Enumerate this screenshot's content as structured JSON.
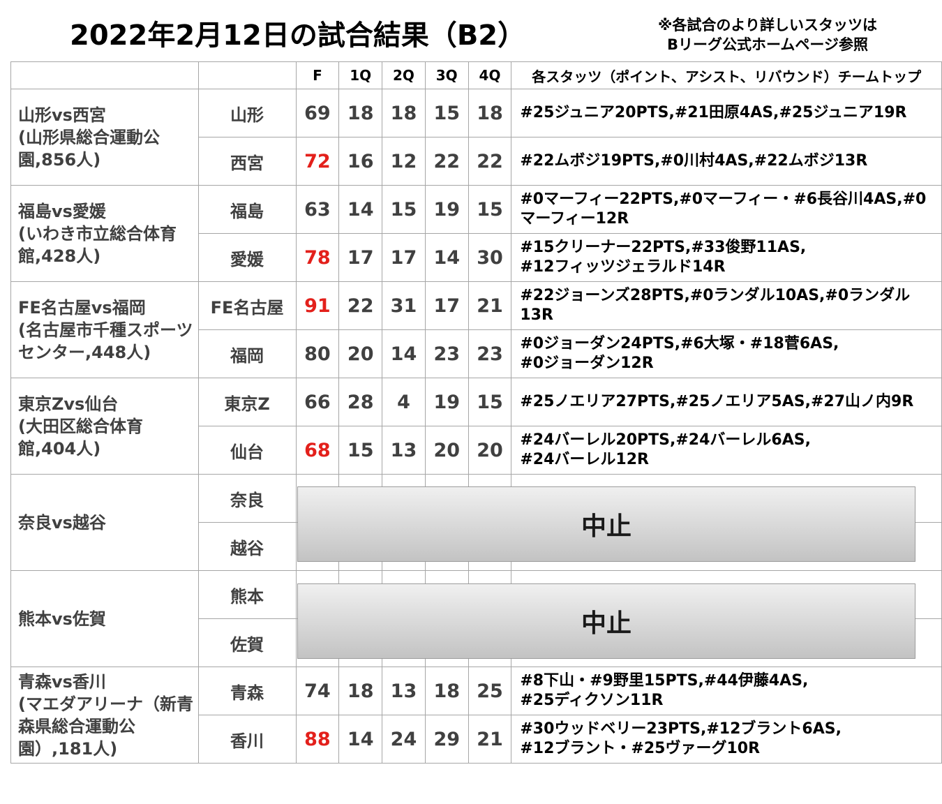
{
  "title": "2022年2月12日の試合結果（B2）",
  "note": [
    "※各試合のより詳しいスタッツは",
    "Bリーグ公式ホームページ参照"
  ],
  "headers": [
    "",
    "",
    "F",
    "1Q",
    "2Q",
    "3Q",
    "4Q",
    "各スタッツ（ポイント、アシスト、リバウンド）チームトップ"
  ],
  "colors": {
    "win": "#e3201b",
    "text": "#404040",
    "border": "#a6a6a6"
  },
  "games": [
    {
      "label": "山形vs西宮\n(山形県総合運動公園,856人)",
      "teams": [
        {
          "name": "山形",
          "f": "69",
          "q": [
            "18",
            "18",
            "15",
            "18"
          ],
          "win": false,
          "stats": "#25ジュニア20PTS,#21田原4AS,#25ジュニア19R"
        },
        {
          "name": "西宮",
          "f": "72",
          "q": [
            "16",
            "12",
            "22",
            "22"
          ],
          "win": true,
          "stats": "#22ムボジ19PTS,#0川村4AS,#22ムボジ13R"
        }
      ]
    },
    {
      "label": "福島vs愛媛\n(いわき市立総合体育館,428人)",
      "teams": [
        {
          "name": "福島",
          "f": "63",
          "q": [
            "14",
            "15",
            "19",
            "15"
          ],
          "win": false,
          "stats": "#0マーフィー22PTS,#0マーフィー・#6長谷川4AS,#0マーフィー12R"
        },
        {
          "name": "愛媛",
          "f": "78",
          "q": [
            "17",
            "17",
            "14",
            "30"
          ],
          "win": true,
          "stats": "#15クリーナー22PTS,#33俊野11AS,\n#12フィッツジェラルド14R"
        }
      ]
    },
    {
      "label": "FE名古屋vs福岡\n(名古屋市千種スポーツセンター,448人)",
      "teams": [
        {
          "name": "FE名古屋",
          "f": "91",
          "q": [
            "22",
            "31",
            "17",
            "21"
          ],
          "win": true,
          "stats": "#22ジョーンズ28PTS,#0ランダル10AS,#0ランダル13R"
        },
        {
          "name": "福岡",
          "f": "80",
          "q": [
            "20",
            "14",
            "23",
            "23"
          ],
          "win": false,
          "stats": "#0ジョーダン24PTS,#6大塚・#18菅6AS,\n#0ジョーダン12R"
        }
      ]
    },
    {
      "label": "東京Zvs仙台\n(大田区総合体育館,404人)",
      "teams": [
        {
          "name": "東京Z",
          "f": "66",
          "q": [
            "28",
            "4",
            "19",
            "15"
          ],
          "win": false,
          "stats": "#25ノエリア27PTS,#25ノエリア5AS,#27山ノ内9R"
        },
        {
          "name": "仙台",
          "f": "68",
          "q": [
            "15",
            "13",
            "20",
            "20"
          ],
          "win": true,
          "stats": "#24バーレル20PTS,#24バーレル6AS,\n#24バーレル12R"
        }
      ]
    },
    {
      "label": "奈良vs越谷",
      "cancelled": "中止",
      "teams": [
        {
          "name": "奈良"
        },
        {
          "name": "越谷"
        }
      ]
    },
    {
      "label": "熊本vs佐賀",
      "cancelled": "中止",
      "teams": [
        {
          "name": "熊本"
        },
        {
          "name": "佐賀"
        }
      ]
    },
    {
      "label": "青森vs香川\n(マエダアリーナ（新青森県総合運動公園）,181人)",
      "teams": [
        {
          "name": "青森",
          "f": "74",
          "q": [
            "18",
            "13",
            "18",
            "25"
          ],
          "win": false,
          "stats": "#8下山・#9野里15PTS,#44伊藤4AS,\n#25ディクソン11R"
        },
        {
          "name": "香川",
          "f": "88",
          "q": [
            "14",
            "24",
            "29",
            "21"
          ],
          "win": true,
          "stats": "#30ウッドベリー23PTS,#12ブラント6AS,\n#12ブラント・#25ヴァーグ10R"
        }
      ]
    }
  ]
}
